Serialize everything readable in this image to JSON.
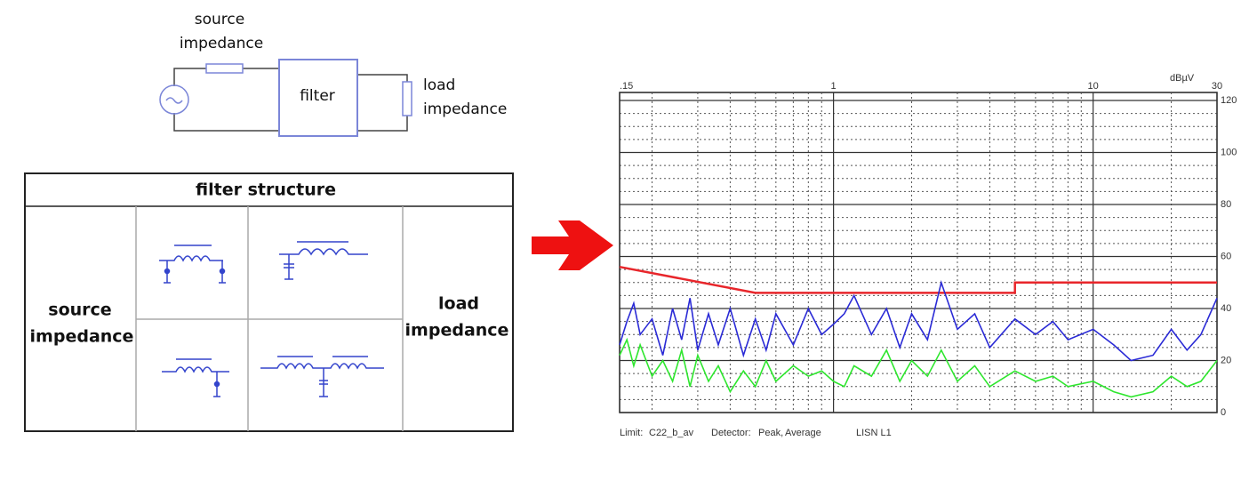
{
  "diagram": {
    "source_label": [
      "source",
      "impedance"
    ],
    "filter_label": "filter",
    "load_label": [
      "load",
      "impedance"
    ],
    "table": {
      "title": "filter structure",
      "source": [
        "source",
        "impedance"
      ],
      "load": [
        "load",
        "impedance"
      ]
    }
  },
  "chart_data": {
    "type": "line",
    "unit": "dBµV",
    "xscale": "log",
    "xlim": [
      0.15,
      30
    ],
    "xticks": [
      {
        "value": 0.15,
        "label": ".15"
      },
      1,
      10,
      30
    ],
    "xminor": [
      0.2,
      0.3,
      0.4,
      0.5,
      0.6,
      0.7,
      0.8,
      0.9,
      2,
      3,
      4,
      5,
      6,
      7,
      8,
      9,
      20
    ],
    "ylim": [
      0,
      120
    ],
    "yticks": [
      0,
      20,
      40,
      60,
      80,
      100,
      120
    ],
    "yminor": [
      5,
      10,
      15,
      25,
      30,
      35,
      45,
      50,
      55,
      65,
      70,
      75,
      85,
      90,
      95,
      105,
      110,
      115
    ],
    "grid": true,
    "x": [
      0.15,
      0.16,
      0.17,
      0.18,
      0.2,
      0.22,
      0.24,
      0.26,
      0.28,
      0.3,
      0.33,
      0.36,
      0.4,
      0.45,
      0.5,
      0.55,
      0.6,
      0.7,
      0.8,
      0.9,
      1.0,
      1.1,
      1.2,
      1.4,
      1.6,
      1.8,
      2,
      2.3,
      2.6,
      3,
      3.5,
      4,
      5,
      6,
      7,
      8,
      10,
      12,
      14,
      17,
      20,
      23,
      26,
      30
    ],
    "series": [
      {
        "name": "Limit:",
        "color": "#e8262b",
        "x": [
          0.15,
          0.5,
          5,
          5,
          30
        ],
        "values": [
          56,
          46,
          46,
          50,
          50
        ]
      },
      {
        "name": "Peak,",
        "color": "#2a2ad6",
        "values": [
          26,
          35,
          42,
          30,
          36,
          22,
          40,
          28,
          44,
          24,
          38,
          26,
          40,
          22,
          36,
          24,
          38,
          26,
          40,
          30,
          34,
          38,
          45,
          30,
          40,
          25,
          38,
          28,
          50,
          32,
          38,
          25,
          36,
          30,
          35,
          28,
          32,
          26,
          20,
          22,
          32,
          24,
          30,
          44
        ]
      },
      {
        "name": "Average",
        "color": "#2ee62e",
        "values": [
          22,
          28,
          18,
          26,
          14,
          20,
          12,
          24,
          10,
          22,
          12,
          18,
          8,
          16,
          10,
          20,
          12,
          18,
          14,
          16,
          12,
          10,
          18,
          14,
          24,
          12,
          20,
          14,
          24,
          12,
          18,
          10,
          16,
          12,
          14,
          10,
          12,
          8,
          6,
          8,
          14,
          10,
          12,
          20
        ]
      }
    ],
    "limit_name": "C22_b_av",
    "detector": "Detector:",
    "lisn": "LISN L1"
  }
}
